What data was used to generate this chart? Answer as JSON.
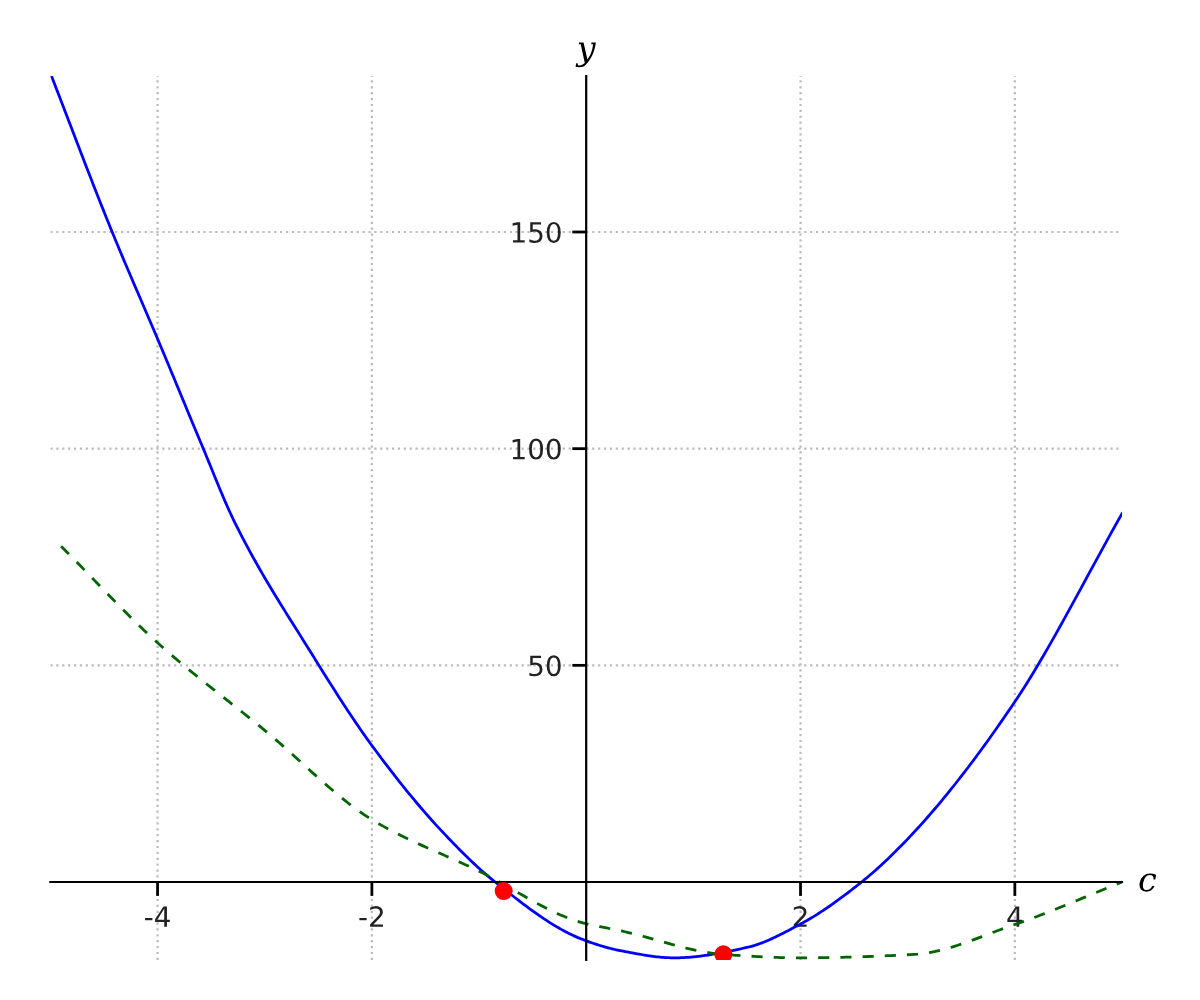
{
  "chart_data": {
    "type": "line",
    "xlabel": "c",
    "ylabel": "y",
    "xlim": [
      -5,
      5
    ],
    "ylim": [
      -18,
      186
    ],
    "xticks": [
      -4,
      -2,
      2,
      4
    ],
    "yticks": [
      50,
      100,
      150
    ],
    "grid": true,
    "series": [
      {
        "color": "#0000ff",
        "line_style": "solid",
        "x": [
          -4.99,
          -4.44,
          -3.96,
          -3.59,
          -3.28,
          -2.57,
          -2,
          -1.35,
          -0.85,
          -0.05,
          0.33,
          0.82,
          1.5,
          2,
          2.57,
          3.06,
          4,
          5
        ],
        "values": [
          186,
          151,
          123,
          101,
          83,
          53,
          31.5,
          11.8,
          0,
          -13.1,
          -15.9,
          -17.5,
          -15.1,
          -9.7,
          0,
          11.5,
          41.6,
          85
        ]
      },
      {
        "color": "#006400",
        "line_style": "dashed",
        "x": [
          -4.9,
          -4,
          -3,
          -2,
          -1,
          -0.05,
          0.33,
          1.28,
          2,
          3.06,
          4,
          5
        ],
        "values": [
          77.5,
          55.2,
          35,
          14.4,
          2.5,
          -9.3,
          -11.3,
          -16.7,
          -17.5,
          -16.7,
          -9.8,
          0
        ]
      },
      {
        "type": "scatter",
        "color": "#ff0000",
        "marker": "circle",
        "x": [
          -0.77,
          1.28
        ],
        "values": [
          -2.1,
          -16.7
        ]
      }
    ]
  }
}
